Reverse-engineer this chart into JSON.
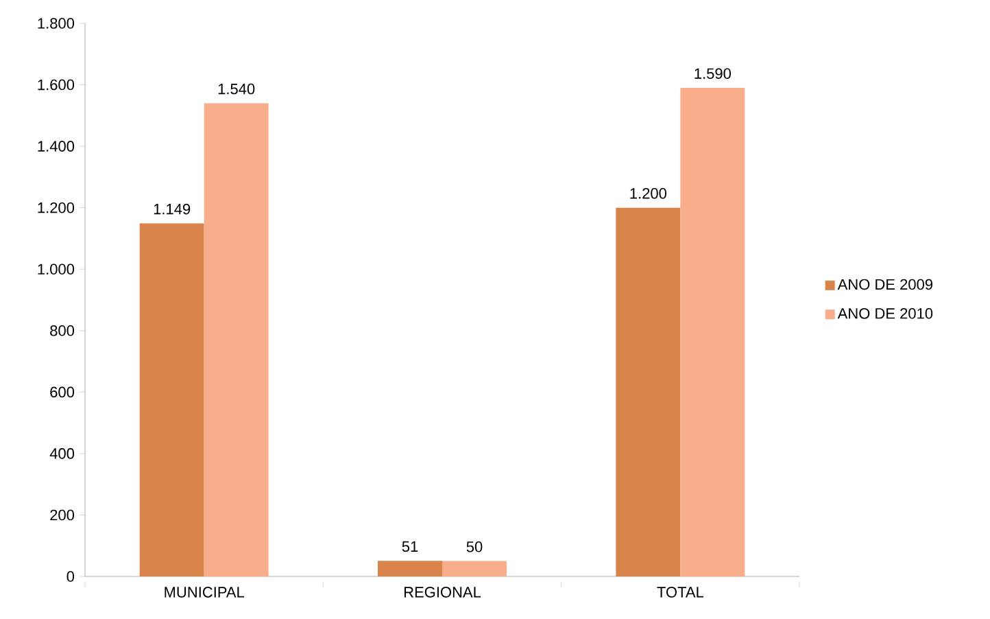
{
  "chart_data": {
    "type": "bar",
    "categories": [
      "MUNICIPAL",
      "REGIONAL",
      "TOTAL"
    ],
    "series": [
      {
        "name": "ANO DE 2009",
        "color": "#d9844a",
        "values": [
          1149,
          51,
          1200
        ],
        "value_labels": [
          "1.149",
          "51",
          "1.200"
        ]
      },
      {
        "name": "ANO DE 2010",
        "color": "#f9ae8b",
        "values": [
          1540,
          50,
          1590
        ],
        "value_labels": [
          "1.540",
          "50",
          "1.590"
        ]
      }
    ],
    "ylim": [
      0,
      1800
    ],
    "yticks": [
      0,
      200,
      400,
      600,
      800,
      {
        "value": 1000,
        "label": "1.000"
      },
      {
        "value": 1200,
        "label": "1.200"
      },
      {
        "value": 1400,
        "label": "1.400"
      },
      {
        "value": 1600,
        "label": "1.600"
      },
      {
        "value": 1800,
        "label": "1.800"
      }
    ],
    "grid": false,
    "legend": "right"
  }
}
